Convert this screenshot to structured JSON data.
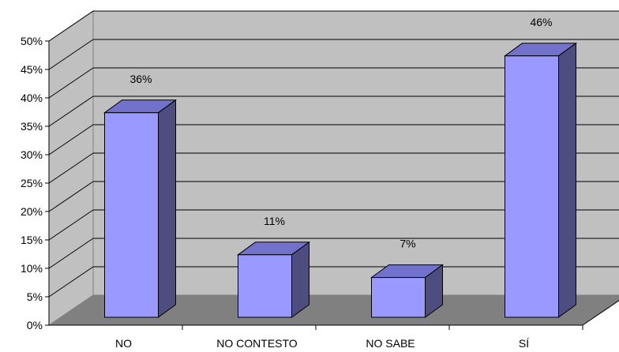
{
  "chart_data": {
    "type": "bar",
    "categories": [
      "NO",
      "NO CONTESTO",
      "NO SABE",
      "SÍ"
    ],
    "values": [
      36,
      11,
      7,
      46
    ],
    "data_labels": [
      "36%",
      "11%",
      "7%",
      "46%"
    ],
    "title": "",
    "xlabel": "",
    "ylabel": "",
    "ylim": [
      0,
      50
    ],
    "yticks": [
      "0%",
      "5%",
      "10%",
      "15%",
      "20%",
      "25%",
      "30%",
      "35%",
      "40%",
      "45%",
      "50%"
    ],
    "grid": true,
    "legend": "none",
    "style": "3d-column"
  },
  "colors": {
    "bar_front": "#9999ff",
    "bar_top": "#7272cc",
    "bar_side": "#4d4d80",
    "back_wall": "#c0c0c0",
    "side_wall": "#c0c0c0",
    "floor": "#808080",
    "gridline": "#000000"
  }
}
